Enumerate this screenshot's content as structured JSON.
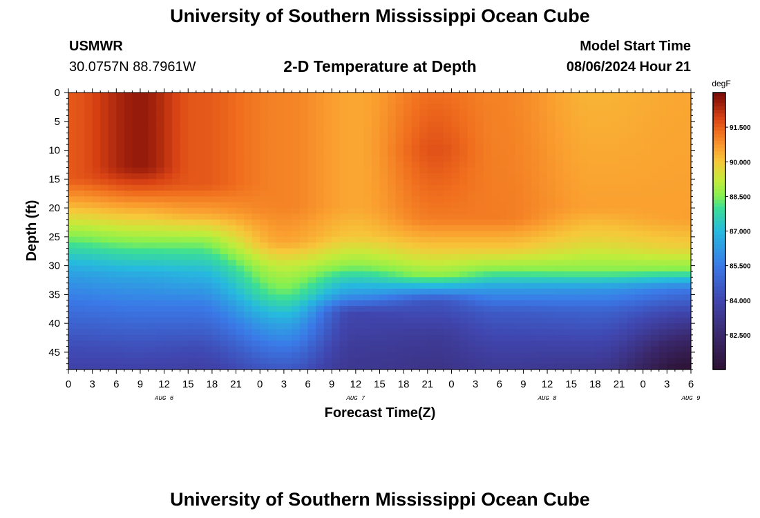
{
  "header": {
    "title": "University of Southern Mississippi Ocean Cube",
    "station": "USMWR",
    "coords": "30.0757N  88.7961W",
    "subtitle": "2-D Temperature at Depth",
    "start_label": "Model Start Time",
    "start_value": "08/06/2024 Hour 21"
  },
  "footer": {
    "title": "University of Southern Mississippi Ocean Cube"
  },
  "chart_data": {
    "type": "heatmap",
    "title": "2-D Temperature at Depth",
    "xlabel": "Forecast Time(Z)",
    "ylabel": "Depth (ft)",
    "x_tick_labels": [
      "0",
      "3",
      "6",
      "9",
      "12",
      "15",
      "18",
      "21",
      "0",
      "3",
      "6",
      "9",
      "12",
      "15",
      "18",
      "21",
      "0",
      "3",
      "6",
      "9",
      "12",
      "15",
      "18",
      "21",
      "0",
      "3",
      "6"
    ],
    "date_labels": [
      {
        "label": "AUG 6",
        "hour_offset": 12
      },
      {
        "label": "AUG 7",
        "hour_offset": 36
      },
      {
        "label": "AUG 8",
        "hour_offset": 60
      },
      {
        "label": "AUG 9",
        "hour_offset": 78
      }
    ],
    "xlim_hours": [
      0,
      78
    ],
    "y_tick_labels": [
      "0",
      "5",
      "10",
      "15",
      "20",
      "25",
      "30",
      "35",
      "40",
      "45"
    ],
    "ylim_ft": [
      0,
      48
    ],
    "colorbar": {
      "unit": "degF",
      "tick_labels": [
        "91.500",
        "90.000",
        "88.500",
        "87.000",
        "85.500",
        "84.000",
        "82.500"
      ],
      "range": [
        81.0,
        93.0
      ]
    },
    "control_profiles": [
      {
        "hour": 0,
        "z": [
          0,
          15,
          19,
          25,
          31,
          37,
          44,
          48
        ],
        "t": [
          91.6,
          91.6,
          90.5,
          88.5,
          86.5,
          85.3,
          84.2,
          83.8
        ]
      },
      {
        "hour": 9,
        "z": [
          0,
          13,
          16,
          20,
          26,
          32,
          38,
          44,
          48
        ],
        "t": [
          92.6,
          92.6,
          91.8,
          90.5,
          88.5,
          86.5,
          85.3,
          84.3,
          83.8
        ]
      },
      {
        "hour": 16,
        "z": [
          0,
          16,
          21,
          26,
          31,
          37,
          44,
          48
        ],
        "t": [
          91.6,
          91.6,
          90.5,
          88.5,
          87.0,
          85.5,
          84.2,
          83.7
        ]
      },
      {
        "hour": 27,
        "z": [
          0,
          20,
          26,
          30,
          35,
          40,
          45,
          48
        ],
        "t": [
          91.0,
          91.0,
          90.5,
          89.2,
          88.2,
          86.5,
          85.2,
          84.5
        ]
      },
      {
        "hour": 36,
        "z": [
          0,
          20,
          25,
          30,
          35,
          38,
          44,
          48
        ],
        "t": [
          90.5,
          90.5,
          90.0,
          88.6,
          86.2,
          84.0,
          83.5,
          83.3
        ]
      },
      {
        "hour": 46,
        "z": [
          0,
          10,
          22,
          27,
          32,
          36,
          42,
          48
        ],
        "t": [
          91.3,
          91.7,
          91.1,
          90.0,
          88.5,
          84.5,
          83.5,
          83.1
        ]
      },
      {
        "hour": 54,
        "z": [
          0,
          22,
          27,
          31,
          34,
          38,
          44,
          48
        ],
        "t": [
          91.0,
          91.1,
          90.0,
          88.4,
          86.3,
          84.6,
          83.8,
          83.4
        ]
      },
      {
        "hour": 66,
        "z": [
          0,
          20,
          26,
          31,
          34,
          38,
          44,
          48
        ],
        "t": [
          90.3,
          90.6,
          89.7,
          88.5,
          86.2,
          84.8,
          83.8,
          83.2
        ]
      },
      {
        "hour": 78,
        "z": [
          0,
          22,
          27,
          31,
          34,
          38,
          44,
          48
        ],
        "t": [
          90.5,
          90.6,
          89.8,
          88.4,
          85.5,
          84.0,
          82.0,
          81.0
        ]
      }
    ]
  }
}
